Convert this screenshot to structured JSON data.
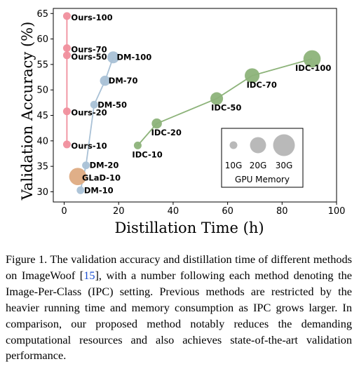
{
  "chart_data": {
    "type": "scatter",
    "xlabel": "Distillation Time (h)",
    "ylabel": "Validation Accuracy (%)",
    "xlim": [
      -4,
      100
    ],
    "ylim": [
      28,
      66
    ],
    "xticks": [
      0,
      20,
      40,
      60,
      80,
      100
    ],
    "yticks": [
      30,
      35,
      40,
      45,
      50,
      55,
      60,
      65
    ],
    "grid": false,
    "series": [
      {
        "name": "Ours",
        "color": "#f08f9d",
        "line": "vertical",
        "points": [
          {
            "x": 1,
            "y": 64.5,
            "label": "Ours-100",
            "memory_gb": 10
          },
          {
            "x": 1,
            "y": 58.2,
            "label": "Ours-70",
            "memory_gb": 10
          },
          {
            "x": 1,
            "y": 56.8,
            "label": "Ours-50",
            "memory_gb": 10
          },
          {
            "x": 1,
            "y": 45.8,
            "label": "Ours-20",
            "memory_gb": 10
          },
          {
            "x": 1,
            "y": 39.3,
            "label": "Ours-10",
            "memory_gb": 10
          }
        ]
      },
      {
        "name": "DM",
        "color": "#a9c1d6",
        "line": "connected",
        "points": [
          {
            "x": 6,
            "y": 30.3,
            "label": "DM-10",
            "memory_gb": 10
          },
          {
            "x": 8,
            "y": 35.2,
            "label": "DM-20",
            "memory_gb": 10
          },
          {
            "x": 11,
            "y": 47.1,
            "label": "DM-50",
            "memory_gb": 10
          },
          {
            "x": 15,
            "y": 51.8,
            "label": "DM-70",
            "memory_gb": 12
          },
          {
            "x": 18,
            "y": 56.4,
            "label": "DM-100",
            "memory_gb": 14
          }
        ]
      },
      {
        "name": "IDC",
        "color": "#8db37a",
        "line": "connected",
        "points": [
          {
            "x": 27,
            "y": 39.1,
            "label": "IDC-10",
            "memory_gb": 10
          },
          {
            "x": 34,
            "y": 43.4,
            "label": "IDC-20",
            "memory_gb": 12
          },
          {
            "x": 56,
            "y": 48.3,
            "label": "IDC-50",
            "memory_gb": 15
          },
          {
            "x": 69,
            "y": 52.8,
            "label": "IDC-70",
            "memory_gb": 18
          },
          {
            "x": 91,
            "y": 56.1,
            "label": "IDC-100",
            "memory_gb": 22
          }
        ]
      },
      {
        "name": "GLaD",
        "color": "#deab82",
        "line": "none",
        "points": [
          {
            "x": 5,
            "y": 33.0,
            "label": "GLaD-10",
            "memory_gb": 22
          }
        ]
      }
    ],
    "legend": {
      "title": "GPU Memory",
      "position": "lower-right",
      "entries": [
        {
          "label": "10G",
          "memory_gb": 10
        },
        {
          "label": "20G",
          "memory_gb": 20
        },
        {
          "label": "30G",
          "memory_gb": 30
        }
      ]
    }
  },
  "caption": {
    "pre": "Figure 1. The validation accuracy and distillation time of different methods on ImageWoof [",
    "ref": "15",
    "post": "], with a number following each method denoting the Image-Per-Class (IPC) setting. Previous methods are restricted by the heavier running time and memory consumption as IPC grows larger. In comparison, our proposed method notably reduces the demanding computational resources and also achieves state-of-the-art validation performance."
  }
}
